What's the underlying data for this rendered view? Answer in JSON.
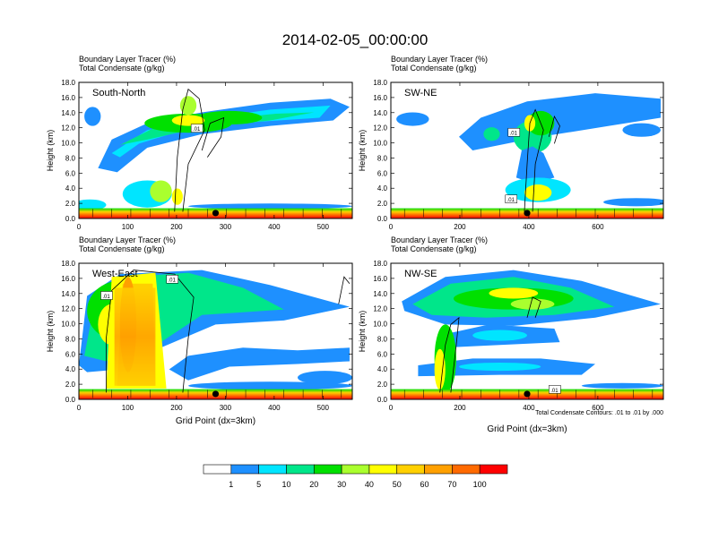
{
  "figure": {
    "title": "2014-02-05_00:00:00",
    "footnote": "Total Condensate Contours: .01 to .01 by .000"
  },
  "colorbar": {
    "labels": [
      "1",
      "5",
      "10",
      "20",
      "30",
      "40",
      "50",
      "60",
      "70",
      "100"
    ],
    "colors": [
      "#ffffff",
      "#1e90ff",
      "#00e5ff",
      "#00e68a",
      "#00e000",
      "#aaff2e",
      "#ffff00",
      "#ffd000",
      "#ffa000",
      "#ff6a00",
      "#ff0000"
    ]
  },
  "chart_data": [
    {
      "type": "heatmap",
      "title": "South-North",
      "header": [
        "Boundary Layer Tracer   (%)",
        "Total Condensate   (g/kg)"
      ],
      "ylabel": "Height (km)",
      "xlabel": "",
      "ylim": [
        0,
        18
      ],
      "xlim": [
        0,
        560
      ],
      "xticks": [
        "0",
        "100",
        "200",
        "300",
        "400",
        "500"
      ],
      "yticks": [
        "0.0",
        "2.0",
        "4.0",
        "6.0",
        "8.0",
        "10.0",
        "12.0",
        "14.0",
        "16.0",
        "18.0"
      ],
      "contour_labels": [
        ".01"
      ],
      "marker_x": 280
    },
    {
      "type": "heatmap",
      "title": "SW-NE",
      "header": [
        "Boundary Layer Tracer   (%)",
        "Total Condensate   (g/kg)"
      ],
      "ylabel": "Height (km)",
      "xlabel": "",
      "ylim": [
        0,
        18
      ],
      "xlim": [
        0,
        790
      ],
      "xticks": [
        "0",
        "200",
        "400",
        "600"
      ],
      "yticks": [
        "0.0",
        "2.0",
        "4.0",
        "6.0",
        "8.0",
        "10.0",
        "12.0",
        "14.0",
        "16.0",
        "18.0"
      ],
      "contour_labels": [
        ".01",
        ".01"
      ],
      "marker_x": 395
    },
    {
      "type": "heatmap",
      "title": "West-East",
      "header": [
        "Boundary Layer Tracer   (%)",
        "Total Condensate   (g/kg)"
      ],
      "ylabel": "Height (km)",
      "xlabel": "Grid Point (dx=3km)",
      "ylim": [
        0,
        18
      ],
      "xlim": [
        0,
        560
      ],
      "xticks": [
        "0",
        "100",
        "200",
        "300",
        "400",
        "500"
      ],
      "yticks": [
        "0.0",
        "2.0",
        "4.0",
        "6.0",
        "8.0",
        "10.0",
        "12.0",
        "14.0",
        "16.0",
        "18.0"
      ],
      "contour_labels": [
        ".01",
        ".01"
      ],
      "marker_x": 280
    },
    {
      "type": "heatmap",
      "title": "NW-SE",
      "header": [
        "Boundary Layer Tracer   (%)",
        "Total Condensate   (g/kg)"
      ],
      "ylabel": "Height (km)",
      "xlabel": "Grid Point (dx=3km)",
      "ylim": [
        0,
        18
      ],
      "xlim": [
        0,
        790
      ],
      "xticks": [
        "0",
        "200",
        "400",
        "600"
      ],
      "yticks": [
        "0.0",
        "2.0",
        "4.0",
        "6.0",
        "8.0",
        "10.0",
        "12.0",
        "14.0",
        "16.0",
        "18.0"
      ],
      "contour_labels": [
        ".01"
      ],
      "marker_x": 395
    }
  ]
}
